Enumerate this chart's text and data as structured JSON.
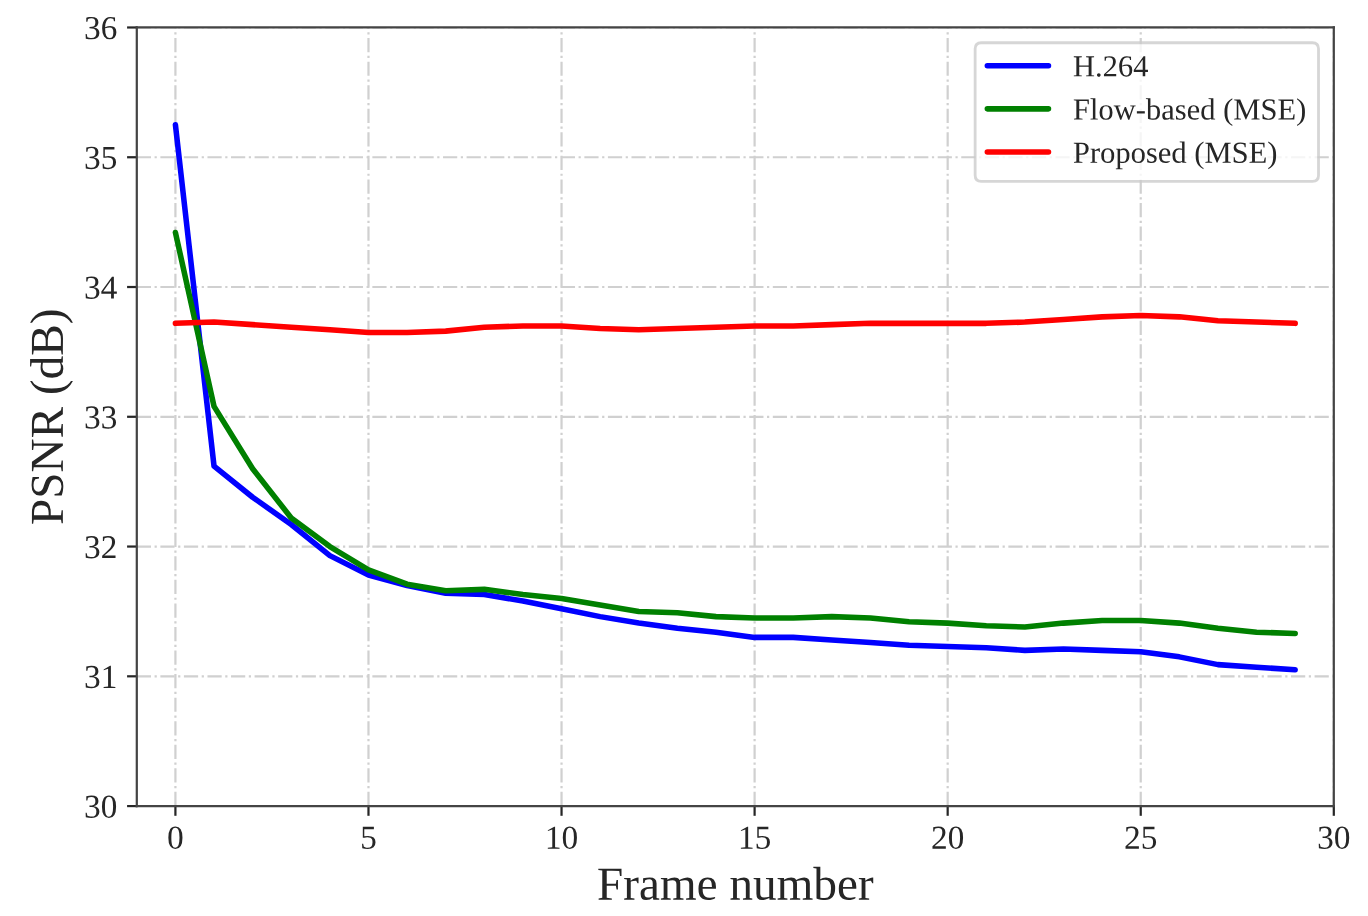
{
  "chart_data": {
    "type": "line",
    "xlabel": "Frame number",
    "ylabel": "PSNR (dB)",
    "x": [
      0,
      1,
      2,
      3,
      4,
      5,
      6,
      7,
      8,
      9,
      10,
      11,
      12,
      13,
      14,
      15,
      16,
      17,
      18,
      19,
      20,
      21,
      22,
      23,
      24,
      25,
      26,
      27,
      28,
      29
    ],
    "series": [
      {
        "name": "H.264",
        "color": "#0000ff",
        "values": [
          35.25,
          32.62,
          32.38,
          32.17,
          31.93,
          31.78,
          31.7,
          31.64,
          31.63,
          31.58,
          31.52,
          31.46,
          31.41,
          31.37,
          31.34,
          31.3,
          31.3,
          31.28,
          31.26,
          31.24,
          31.23,
          31.22,
          31.2,
          31.21,
          31.2,
          31.19,
          31.15,
          31.09,
          31.07,
          31.05
        ]
      },
      {
        "name": "Flow-based (MSE)",
        "color": "#008000",
        "values": [
          34.42,
          33.08,
          32.6,
          32.22,
          32.0,
          31.82,
          31.71,
          31.66,
          31.67,
          31.63,
          31.6,
          31.55,
          31.5,
          31.49,
          31.46,
          31.45,
          31.45,
          31.46,
          31.45,
          31.42,
          31.41,
          31.39,
          31.38,
          31.41,
          31.43,
          31.43,
          31.41,
          31.37,
          31.34,
          31.33
        ]
      },
      {
        "name": "Proposed (MSE)",
        "color": "#ff0000",
        "values": [
          33.72,
          33.73,
          33.71,
          33.69,
          33.67,
          33.65,
          33.65,
          33.66,
          33.69,
          33.7,
          33.7,
          33.68,
          33.67,
          33.68,
          33.69,
          33.7,
          33.7,
          33.71,
          33.72,
          33.72,
          33.72,
          33.72,
          33.73,
          33.75,
          33.77,
          33.78,
          33.77,
          33.74,
          33.73,
          33.72
        ]
      }
    ],
    "xlim": [
      -1,
      30
    ],
    "xticks": [
      0,
      5,
      10,
      15,
      20,
      25,
      30
    ],
    "ylim": [
      30,
      36
    ],
    "yticks": [
      30,
      31,
      32,
      33,
      34,
      35,
      36
    ],
    "grid": true,
    "legend": "top right",
    "line_style": "solid",
    "marker": "none"
  }
}
